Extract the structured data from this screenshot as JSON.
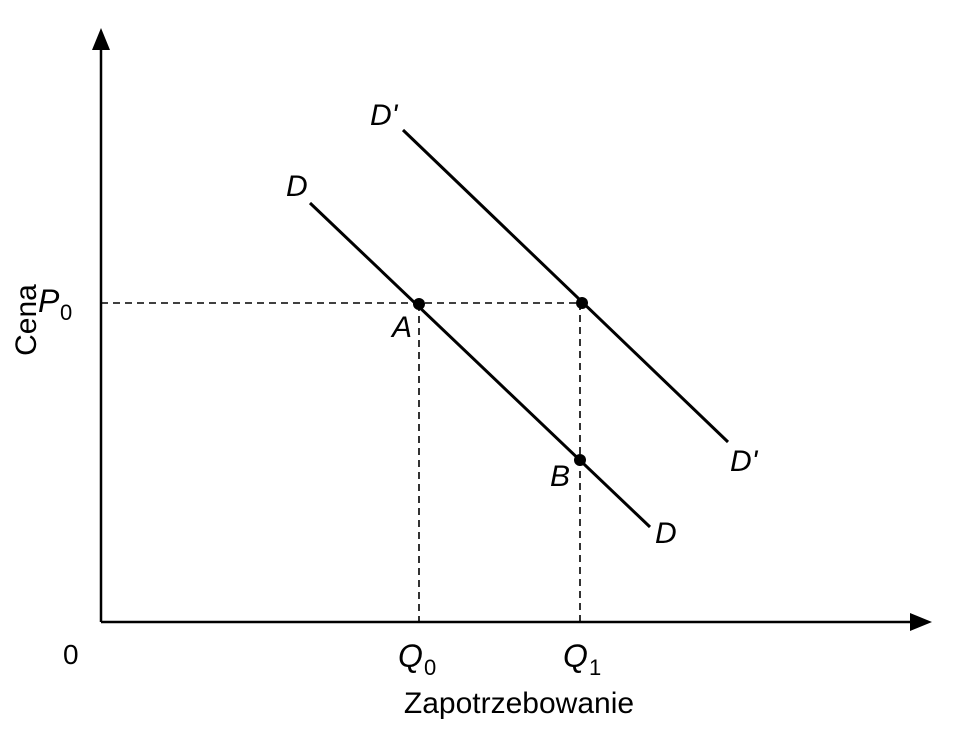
{
  "axes": {
    "y_label": "Cena",
    "x_label": "Zapotrzebowanie",
    "origin": "0"
  },
  "price_label": {
    "main": "P",
    "sub": "0"
  },
  "quantity_labels": [
    {
      "main": "Q",
      "sub": "0"
    },
    {
      "main": "Q",
      "sub": "1"
    }
  ],
  "curves": {
    "d_start": "D",
    "d_end": "D",
    "d_prime_start": "D'",
    "d_prime_end": "D'"
  },
  "points": {
    "a": "A",
    "b": "B"
  },
  "colors": {
    "ink": "#000000",
    "background": "#ffffff"
  }
}
